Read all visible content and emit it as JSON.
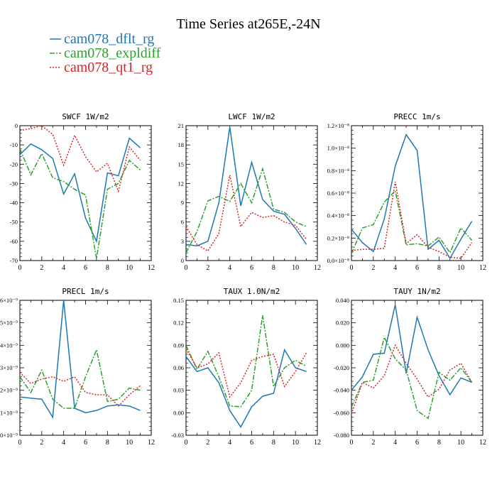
{
  "figure": {
    "title": "Time Series at265E,-24N",
    "legend": [
      {
        "label": "cam078_dflt_rg",
        "color": "#1f77b4",
        "dash": "solid"
      },
      {
        "label": "cam078_expldiff",
        "color": "#2ca02c",
        "dash": "dashdot"
      },
      {
        "label": "cam078_qt1_rg",
        "color": "#d62728",
        "dash": "dot"
      }
    ]
  },
  "chart_data": [
    {
      "type": "line",
      "title": "SWCF   1W/m2",
      "x": [
        0,
        1,
        2,
        3,
        4,
        5,
        6,
        7,
        8,
        9,
        10,
        11
      ],
      "xlim": [
        0,
        12
      ],
      "xticks": [
        "0",
        "2",
        "4",
        "6",
        "8",
        "10",
        "12"
      ],
      "ylim": [
        -70,
        0
      ],
      "yticks": [
        {
          "v": -70,
          "label": "-70"
        },
        {
          "v": -60,
          "label": "-60"
        },
        {
          "v": -50,
          "label": "-50"
        },
        {
          "v": -40,
          "label": "-40"
        },
        {
          "v": -30,
          "label": "-30"
        },
        {
          "v": -20,
          "label": "-20"
        },
        {
          "v": -10,
          "label": "-10"
        },
        {
          "v": 0,
          "label": "0"
        }
      ],
      "series": [
        {
          "name": "cam078_dflt_rg",
          "values": [
            -15,
            -9.5,
            -12.5,
            -17,
            -35.5,
            -25,
            -48,
            -60,
            -24.5,
            -26,
            -6.5,
            -11.5
          ]
        },
        {
          "name": "cam078_expldiff",
          "values": [
            -12,
            -25.5,
            -14.5,
            -27,
            -29,
            -33,
            -36,
            -69,
            -33,
            -30,
            -18,
            -23
          ]
        },
        {
          "name": "cam078_qt1_rg",
          "values": [
            -2.5,
            -1.5,
            0,
            -4.5,
            -20.5,
            -5,
            -16,
            -24,
            -19.5,
            -34,
            -11,
            -18
          ]
        }
      ]
    },
    {
      "type": "line",
      "title": "LWCF   1W/m2",
      "x": [
        0,
        1,
        2,
        3,
        4,
        5,
        6,
        7,
        8,
        9,
        10,
        11
      ],
      "xlim": [
        0,
        12
      ],
      "xticks": [
        "0",
        "2",
        "4",
        "6",
        "8",
        "10",
        "12"
      ],
      "ylim": [
        0,
        21
      ],
      "yticks": [
        {
          "v": 0,
          "label": "0"
        },
        {
          "v": 3,
          "label": "3"
        },
        {
          "v": 6,
          "label": "6"
        },
        {
          "v": 9,
          "label": "9"
        },
        {
          "v": 12,
          "label": "12"
        },
        {
          "v": 15,
          "label": "15"
        },
        {
          "v": 18,
          "label": "18"
        },
        {
          "v": 21,
          "label": "21"
        }
      ],
      "series": [
        {
          "name": "cam078_dflt_rg",
          "values": [
            2.5,
            2.3,
            3,
            9,
            20.8,
            8.5,
            15.3,
            9.5,
            7.7,
            7.2,
            5,
            2.5
          ]
        },
        {
          "name": "cam078_expldiff",
          "values": [
            1.2,
            4.5,
            9.3,
            10,
            9.2,
            12,
            9,
            14.3,
            8,
            7.5,
            6,
            5.3
          ]
        },
        {
          "name": "cam078_qt1_rg",
          "values": [
            5.3,
            2.5,
            1.5,
            4.2,
            13.3,
            5.3,
            7.5,
            6.7,
            7,
            6,
            5.5,
            3.3
          ]
        }
      ]
    },
    {
      "type": "line",
      "title": "PRECC   1m/s",
      "x": [
        0,
        1,
        2,
        3,
        4,
        5,
        6,
        7,
        8,
        9,
        10,
        11
      ],
      "xlim": [
        0,
        12
      ],
      "xticks": [
        "0",
        "2",
        "4",
        "6",
        "8",
        "10",
        "12"
      ],
      "ylim": [
        0,
        1.2
      ],
      "yticks": [
        {
          "v": 0,
          "label": "0.0×10⁻⁸"
        },
        {
          "v": 0.2,
          "label": "0.2×10⁻⁸"
        },
        {
          "v": 0.4,
          "label": "0.4×10⁻⁸"
        },
        {
          "v": 0.6,
          "label": "0.6×10⁻⁸"
        },
        {
          "v": 0.8,
          "label": "0.8×10⁻⁸"
        },
        {
          "v": 1.0,
          "label": "1.0×10⁻⁸"
        },
        {
          "v": 1.2,
          "label": "1.2×10⁻⁸"
        }
      ],
      "series": [
        {
          "name": "cam078_dflt_rg",
          "values": [
            0.28,
            0.16,
            0.08,
            0.37,
            0.84,
            1.12,
            0.98,
            0.1,
            0.18,
            0.02,
            0.19,
            0.35
          ]
        },
        {
          "name": "cam078_expldiff",
          "values": [
            0.06,
            0.29,
            0.32,
            0.52,
            0.62,
            0.14,
            0.15,
            0.13,
            0.21,
            0.07,
            0.29,
            0.18
          ]
        },
        {
          "name": "cam078_qt1_rg",
          "values": [
            0.09,
            0.1,
            0.1,
            0.11,
            0.7,
            0.15,
            0.23,
            0.12,
            0.08,
            0.03,
            0.02,
            0.16
          ]
        }
      ]
    },
    {
      "type": "line",
      "title": "PRECL   1m/s",
      "x": [
        0,
        1,
        2,
        3,
        4,
        5,
        6,
        7,
        8,
        9,
        10,
        11
      ],
      "xlim": [
        0,
        12
      ],
      "xticks": [
        "0",
        "2",
        "4",
        "6",
        "8",
        "10",
        "12"
      ],
      "ylim": [
        0,
        6
      ],
      "yticks": [
        {
          "v": 0,
          "label": "0×10⁻⁹"
        },
        {
          "v": 1,
          "label": "1×10⁻⁹"
        },
        {
          "v": 2,
          "label": "2×10⁻⁹"
        },
        {
          "v": 3,
          "label": "3×10⁻⁹"
        },
        {
          "v": 4,
          "label": "4×10⁻⁹"
        },
        {
          "v": 5,
          "label": "5×10⁻⁹"
        },
        {
          "v": 6,
          "label": "6×10⁻⁹"
        }
      ],
      "series": [
        {
          "name": "cam078_dflt_rg",
          "values": [
            1.7,
            1.65,
            1.6,
            0.8,
            6.0,
            1.2,
            1.0,
            1.1,
            1.3,
            1.35,
            1.3,
            1.1
          ]
        },
        {
          "name": "cam078_expldiff",
          "values": [
            2.6,
            1.9,
            2.9,
            1.6,
            1.2,
            1.2,
            2.6,
            3.8,
            1.5,
            1.6,
            2.1,
            2.0
          ]
        },
        {
          "name": "cam078_qt1_rg",
          "values": [
            2.8,
            2.3,
            2.5,
            2.6,
            2.4,
            2.6,
            1.9,
            1.8,
            1.8,
            1.3,
            1.8,
            2.2
          ]
        }
      ]
    },
    {
      "type": "line",
      "title": "TAUX   1.0N/m2",
      "x": [
        0,
        1,
        2,
        3,
        4,
        5,
        6,
        7,
        8,
        9,
        10,
        11
      ],
      "xlim": [
        0,
        12
      ],
      "xticks": [
        "0",
        "2",
        "4",
        "6",
        "8",
        "10",
        "12"
      ],
      "ylim": [
        -0.03,
        0.15
      ],
      "yticks": [
        {
          "v": -0.03,
          "label": "-0.03"
        },
        {
          "v": 0.0,
          "label": "0.00"
        },
        {
          "v": 0.03,
          "label": "0.03"
        },
        {
          "v": 0.06,
          "label": "0.06"
        },
        {
          "v": 0.09,
          "label": "0.09"
        },
        {
          "v": 0.12,
          "label": "0.12"
        },
        {
          "v": 0.15,
          "label": "0.15"
        }
      ],
      "series": [
        {
          "name": "cam078_dflt_rg",
          "values": [
            0.075,
            0.055,
            0.06,
            0.04,
            0.003,
            -0.019,
            0.008,
            0.022,
            0.026,
            0.084,
            0.06,
            0.055
          ]
        },
        {
          "name": "cam078_expldiff",
          "values": [
            0.09,
            0.058,
            0.082,
            0.048,
            0.009,
            0.008,
            0.03,
            0.13,
            0.035,
            0.06,
            0.07,
            0.062
          ]
        },
        {
          "name": "cam078_qt1_rg",
          "values": [
            0.085,
            0.06,
            0.065,
            0.08,
            0.021,
            0.04,
            0.07,
            0.075,
            0.078,
            0.035,
            0.055,
            0.08
          ]
        }
      ]
    },
    {
      "type": "line",
      "title": "TAUY   1N/m2",
      "x": [
        0,
        1,
        2,
        3,
        4,
        5,
        6,
        7,
        8,
        9,
        10,
        11
      ],
      "xlim": [
        0,
        12
      ],
      "xticks": [
        "0",
        "2",
        "4",
        "6",
        "8",
        "10",
        "12"
      ],
      "ylim": [
        -0.08,
        0.04
      ],
      "yticks": [
        {
          "v": -0.08,
          "label": "-0.080"
        },
        {
          "v": -0.06,
          "label": "-0.060"
        },
        {
          "v": -0.04,
          "label": "-0.040"
        },
        {
          "v": -0.02,
          "label": "-0.020"
        },
        {
          "v": 0.0,
          "label": "0.000"
        },
        {
          "v": 0.02,
          "label": "0.020"
        },
        {
          "v": 0.04,
          "label": "0.040"
        }
      ],
      "series": [
        {
          "name": "cam078_dflt_rg",
          "values": [
            -0.04,
            -0.028,
            -0.008,
            -0.007,
            0.036,
            -0.025,
            0.025,
            -0.004,
            -0.027,
            -0.044,
            -0.029,
            -0.033
          ]
        },
        {
          "name": "cam078_expldiff",
          "values": [
            -0.055,
            -0.033,
            -0.031,
            0.007,
            -0.012,
            -0.022,
            -0.058,
            -0.065,
            -0.024,
            -0.031,
            -0.02,
            -0.033
          ]
        },
        {
          "name": "cam078_qt1_rg",
          "values": [
            -0.061,
            -0.033,
            -0.038,
            -0.027,
            0.0,
            -0.016,
            -0.03,
            -0.046,
            -0.039,
            -0.022,
            -0.016,
            -0.033
          ]
        }
      ]
    }
  ]
}
